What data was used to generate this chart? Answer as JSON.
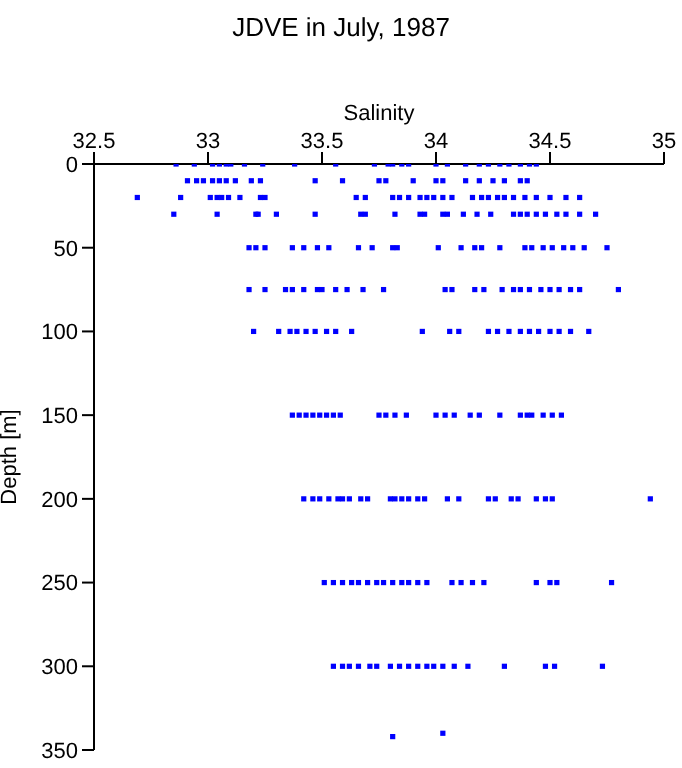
{
  "chart_data": {
    "type": "scatter",
    "title": "JDVE in July, 1987",
    "xlabel": "Salinity",
    "ylabel": "Depth [m]",
    "xlim": [
      32.5,
      35
    ],
    "xticks": [
      32.5,
      33,
      33.5,
      34,
      34.5,
      35
    ],
    "ylim": [
      350,
      0
    ],
    "yticks": [
      0,
      50,
      100,
      150,
      200,
      250,
      300,
      350
    ],
    "grid": false,
    "marker": "square",
    "series": [
      {
        "color": "#0000ff",
        "x": [
          32.86,
          32.94,
          33.02,
          33.05,
          33.08,
          33.1,
          33.16,
          33.24,
          33.38,
          33.56,
          33.73,
          33.79,
          33.81,
          33.85,
          33.88,
          34.0,
          34.05,
          34.13,
          34.19,
          34.23,
          34.28,
          34.32,
          34.37,
          34.41,
          34.44,
          32.91,
          32.95,
          32.98,
          33.02,
          33.05,
          33.08,
          33.12,
          33.19,
          33.23,
          33.47,
          33.59,
          33.75,
          33.78,
          33.9,
          34.0,
          34.03,
          34.13,
          34.19,
          34.25,
          34.3,
          34.37,
          34.4,
          32.69,
          32.88,
          33.01,
          33.04,
          33.06,
          33.09,
          33.14,
          33.23,
          33.25,
          33.65,
          33.69,
          33.81,
          33.84,
          33.88,
          33.93,
          33.96,
          33.99,
          34.03,
          34.07,
          34.16,
          34.2,
          34.23,
          34.27,
          34.3,
          34.34,
          34.39,
          34.44,
          34.5,
          34.57,
          34.63,
          32.85,
          33.04,
          33.21,
          33.22,
          33.3,
          33.47,
          33.67,
          33.69,
          33.82,
          33.93,
          33.95,
          34.03,
          34.05,
          34.12,
          34.18,
          34.24,
          34.34,
          34.37,
          34.4,
          34.44,
          34.48,
          34.53,
          34.57,
          34.63,
          34.7,
          33.18,
          33.21,
          33.25,
          33.37,
          33.42,
          33.48,
          33.53,
          33.66,
          33.72,
          33.81,
          33.83,
          34.01,
          34.11,
          34.17,
          34.2,
          34.28,
          34.39,
          34.42,
          34.47,
          34.51,
          34.56,
          34.6,
          34.65,
          34.75,
          33.18,
          33.25,
          33.34,
          33.37,
          33.42,
          33.48,
          33.5,
          33.56,
          33.61,
          33.68,
          33.77,
          34.04,
          34.07,
          34.17,
          34.21,
          34.29,
          34.34,
          34.37,
          34.41,
          34.46,
          34.5,
          34.54,
          34.59,
          34.63,
          34.8,
          33.2,
          33.31,
          33.36,
          33.39,
          33.43,
          33.47,
          33.52,
          33.56,
          33.63,
          33.94,
          34.06,
          34.1,
          34.23,
          34.27,
          34.32,
          34.37,
          34.41,
          34.45,
          34.5,
          34.54,
          34.59,
          34.67,
          33.37,
          33.4,
          33.43,
          33.46,
          33.49,
          33.52,
          33.55,
          33.58,
          33.75,
          33.78,
          33.82,
          33.87,
          34.0,
          34.04,
          34.08,
          34.15,
          34.19,
          34.28,
          34.37,
          34.4,
          34.42,
          34.47,
          34.51,
          34.55,
          33.42,
          33.46,
          33.49,
          33.53,
          33.57,
          33.59,
          33.62,
          33.67,
          33.7,
          33.8,
          33.82,
          33.85,
          33.88,
          33.92,
          33.95,
          34.05,
          34.1,
          34.23,
          34.26,
          34.33,
          34.36,
          34.44,
          34.48,
          34.51,
          34.94,
          33.51,
          33.55,
          33.59,
          33.63,
          33.66,
          33.7,
          33.74,
          33.77,
          33.81,
          33.85,
          33.88,
          33.92,
          33.96,
          34.07,
          34.11,
          34.16,
          34.21,
          34.44,
          34.5,
          34.53,
          34.77,
          33.55,
          33.59,
          33.62,
          33.66,
          33.71,
          33.74,
          33.8,
          33.84,
          33.88,
          33.92,
          33.96,
          33.99,
          34.03,
          34.08,
          34.14,
          34.3,
          34.48,
          34.52,
          34.73,
          33.81,
          34.03
        ],
        "values": [
          0,
          0,
          0,
          0,
          0,
          0,
          0,
          0,
          0,
          0,
          0,
          0,
          0,
          0,
          0,
          0,
          0,
          0,
          0,
          0,
          0,
          0,
          0,
          0,
          0,
          10,
          10,
          10,
          10,
          10,
          10,
          10,
          10,
          10,
          10,
          10,
          10,
          10,
          10,
          10,
          10,
          10,
          10,
          10,
          10,
          10,
          10,
          20,
          20,
          20,
          20,
          20,
          20,
          20,
          20,
          20,
          20,
          20,
          20,
          20,
          20,
          20,
          20,
          20,
          20,
          20,
          20,
          20,
          20,
          20,
          20,
          20,
          20,
          20,
          20,
          20,
          20,
          30,
          30,
          30,
          30,
          30,
          30,
          30,
          30,
          30,
          30,
          30,
          30,
          30,
          30,
          30,
          30,
          30,
          30,
          30,
          30,
          30,
          30,
          30,
          30,
          30,
          50,
          50,
          50,
          50,
          50,
          50,
          50,
          50,
          50,
          50,
          50,
          50,
          50,
          50,
          50,
          50,
          50,
          50,
          50,
          50,
          50,
          50,
          50,
          50,
          75,
          75,
          75,
          75,
          75,
          75,
          75,
          75,
          75,
          75,
          75,
          75,
          75,
          75,
          75,
          75,
          75,
          75,
          75,
          75,
          75,
          75,
          75,
          75,
          75,
          100,
          100,
          100,
          100,
          100,
          100,
          100,
          100,
          100,
          100,
          100,
          100,
          100,
          100,
          100,
          100,
          100,
          100,
          100,
          100,
          100,
          100,
          150,
          150,
          150,
          150,
          150,
          150,
          150,
          150,
          150,
          150,
          150,
          150,
          150,
          150,
          150,
          150,
          150,
          150,
          150,
          150,
          150,
          150,
          150,
          150,
          200,
          200,
          200,
          200,
          200,
          200,
          200,
          200,
          200,
          200,
          200,
          200,
          200,
          200,
          200,
          200,
          200,
          200,
          200,
          200,
          200,
          200,
          200,
          200,
          200,
          250,
          250,
          250,
          250,
          250,
          250,
          250,
          250,
          250,
          250,
          250,
          250,
          250,
          250,
          250,
          250,
          250,
          250,
          250,
          250,
          250,
          300,
          300,
          300,
          300,
          300,
          300,
          300,
          300,
          300,
          300,
          300,
          300,
          300,
          300,
          300,
          300,
          300,
          300,
          300,
          342,
          340
        ]
      }
    ]
  }
}
